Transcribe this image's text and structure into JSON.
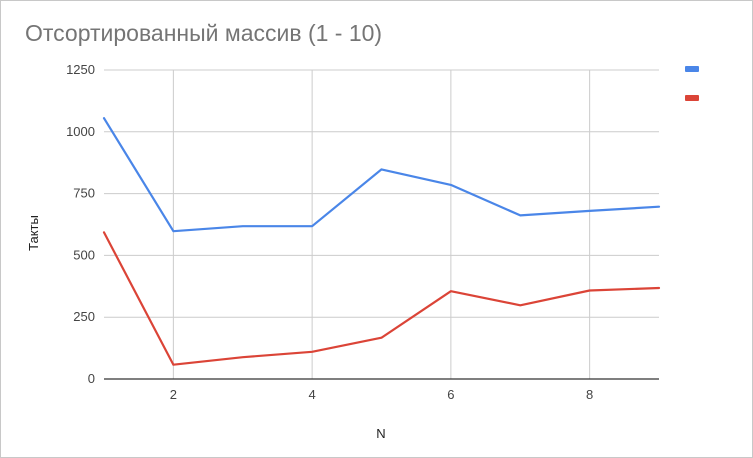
{
  "chart_data": {
    "type": "line",
    "title": "Отсортированный массив (1 - 10)",
    "xlabel": "N",
    "ylabel": "Такты",
    "x": [
      1,
      2,
      3,
      4,
      5,
      6,
      7,
      8,
      9
    ],
    "xlim": [
      1,
      9
    ],
    "ylim": [
      0,
      1250
    ],
    "xticks": [
      2,
      4,
      6,
      8
    ],
    "yticks": [
      0,
      250,
      500,
      750,
      1000,
      1250
    ],
    "grid": true,
    "legend_position": "top-right",
    "series": [
      {
        "color": "#4a86e8",
        "values": [
          1055,
          598,
          618,
          618,
          848,
          785,
          662,
          680,
          697
        ]
      },
      {
        "color": "#db4437",
        "values": [
          593,
          58,
          88,
          110,
          167,
          355,
          298,
          358,
          368
        ]
      }
    ]
  }
}
